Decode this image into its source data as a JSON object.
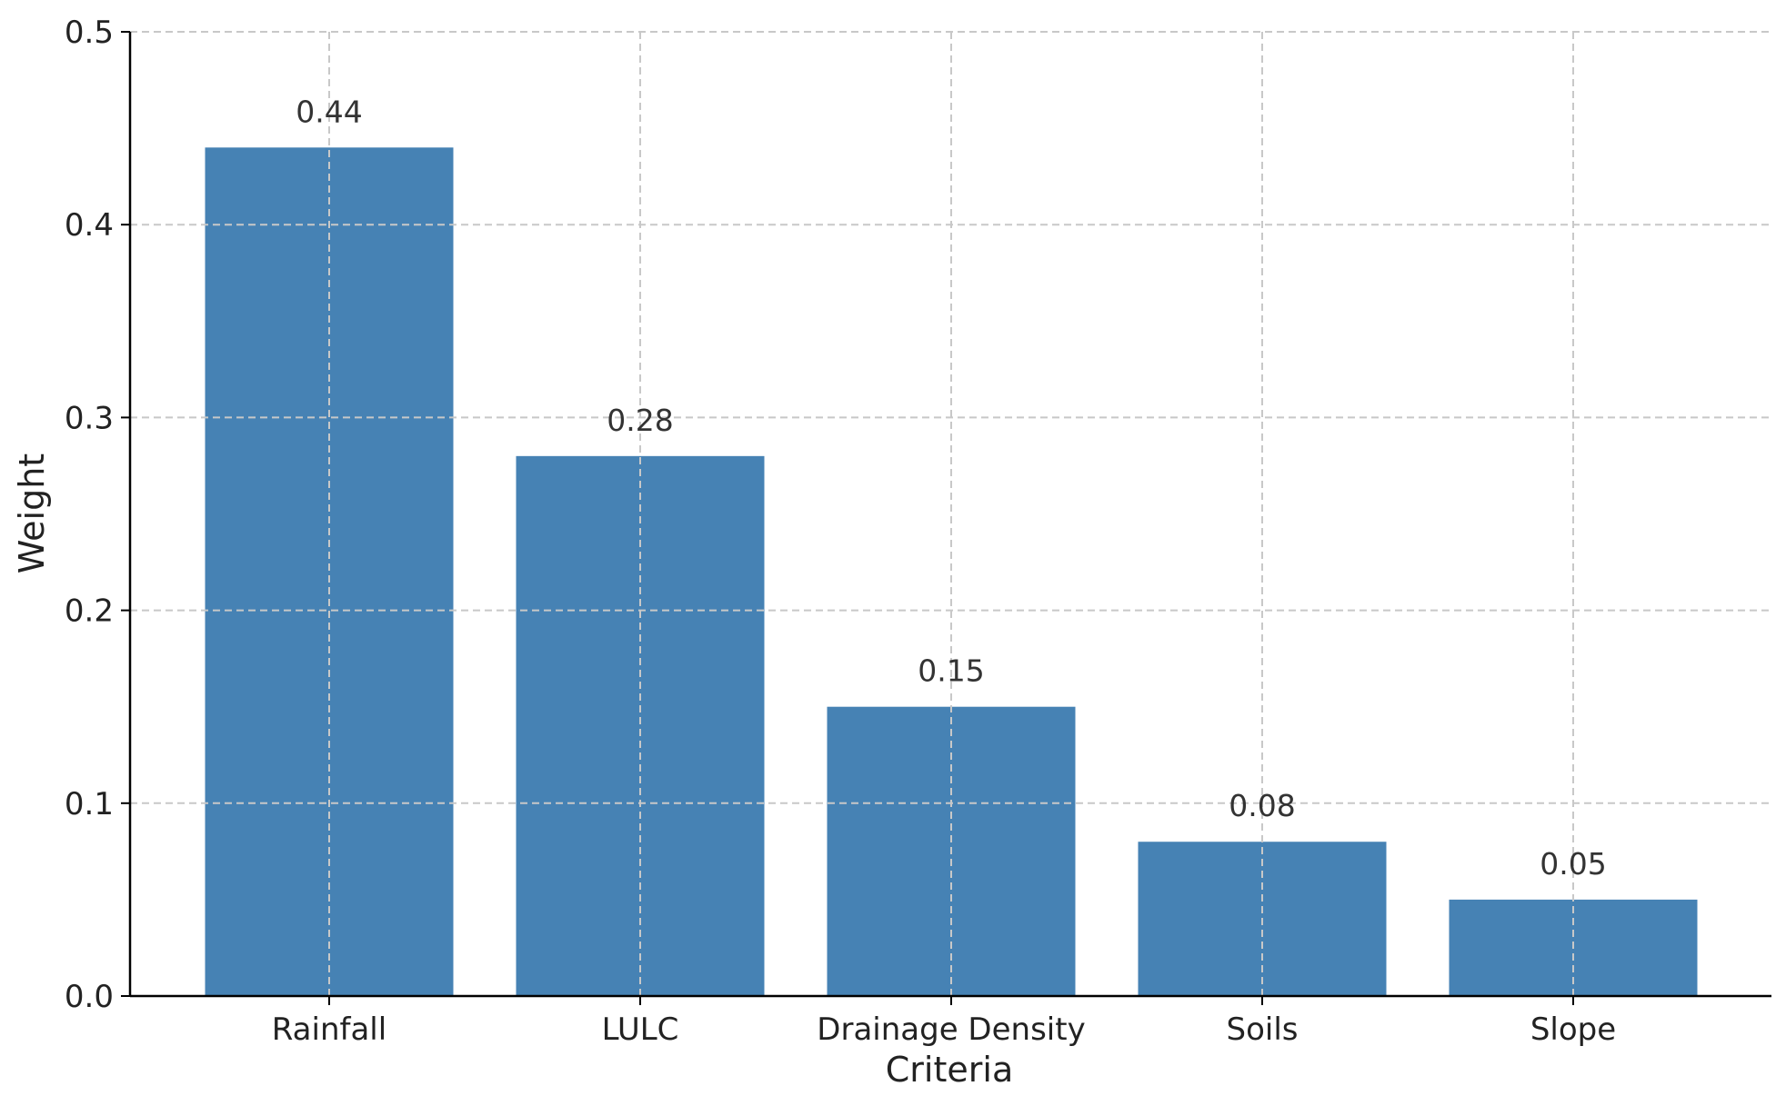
{
  "chart_data": {
    "type": "bar",
    "title": "",
    "xlabel": "Criteria",
    "ylabel": "Weight",
    "categories": [
      "Rainfall",
      "LULC",
      "Drainage Density",
      "Soils",
      "Slope"
    ],
    "values": [
      0.44,
      0.28,
      0.15,
      0.08,
      0.05
    ],
    "data_labels": [
      "0.44",
      "0.28",
      "0.15",
      "0.08",
      "0.05"
    ],
    "ylim": [
      0,
      0.5
    ],
    "yticks": [
      0.0,
      0.1,
      0.2,
      0.3,
      0.4,
      0.5
    ],
    "ytick_labels": [
      "0.0",
      "0.1",
      "0.2",
      "0.3",
      "0.4",
      "0.5"
    ],
    "grid": true,
    "grid_style": "dashed",
    "bar_color": "#4682b4"
  }
}
